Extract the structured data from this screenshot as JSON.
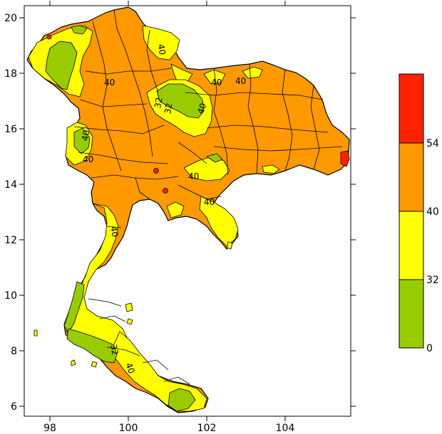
{
  "colors": {
    "band_0_32": "#99cc00",
    "band_32_40": "#ffff00",
    "band_40_54": "#ff9900",
    "band_54_plus": "#ff2200",
    "outline": "#000000"
  },
  "axes": {
    "x_ticks": [
      "98",
      "100",
      "102",
      "104"
    ],
    "y_ticks": [
      "20",
      "18",
      "16",
      "14",
      "12",
      "10",
      "8",
      "6"
    ]
  },
  "legend": {
    "levels": [
      "54",
      "40",
      "32",
      "0"
    ]
  },
  "contour_labels": [
    "40",
    "40",
    "40",
    "32",
    "40",
    "32",
    "40",
    "40",
    "40",
    "40",
    "40",
    "40",
    "32",
    "40"
  ]
}
